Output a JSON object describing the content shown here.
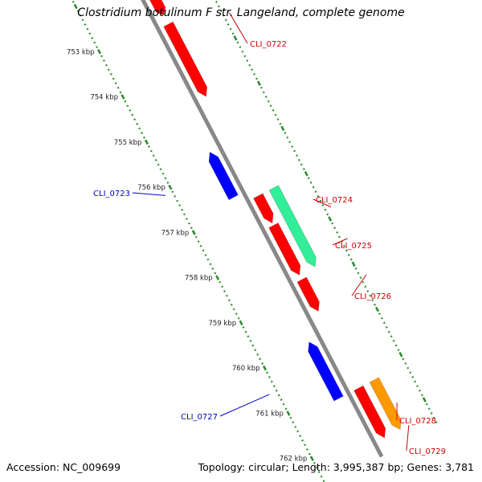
{
  "title": "Clostridium botulinum F str. Langeland, complete genome",
  "footer": {
    "accession": "Accession: NC_009699",
    "topology": "Topology: circular; Length: 3,995,387 bp; Genes: 3,781"
  },
  "ruler_labels": [
    {
      "text": "753 kbp",
      "kbp": 753
    },
    {
      "text": "754 kbp",
      "kbp": 754
    },
    {
      "text": "755 kbp",
      "kbp": 755
    },
    {
      "text": "756 kbp",
      "kbp": 756
    },
    {
      "text": "757 kbp",
      "kbp": 757
    },
    {
      "text": "758 kbp",
      "kbp": 758
    },
    {
      "text": "759 kbp",
      "kbp": 759
    },
    {
      "text": "760 kbp",
      "kbp": 760
    },
    {
      "text": "761 kbp",
      "kbp": 761
    },
    {
      "text": "762 kbp",
      "kbp": 762
    }
  ],
  "genes": [
    {
      "label": "",
      "strand": "+",
      "track": 1,
      "start_kbp": 752.55,
      "end_kbp": 752.95,
      "color": "#ff0000"
    },
    {
      "label": "CLI_0722",
      "strand": "+",
      "track": 1,
      "start_kbp": 753.15,
      "end_kbp": 754.75,
      "color": "#ff0000"
    },
    {
      "label": "CLI_0723",
      "strand": "-",
      "track": 1,
      "start_kbp": 755.75,
      "end_kbp": 756.75,
      "color": "#0000ff"
    },
    {
      "label": "CLI_0724",
      "strand": "+",
      "track": 1,
      "start_kbp": 756.95,
      "end_kbp": 757.55,
      "color": "#ff0000"
    },
    {
      "label": "CLI_0725",
      "strand": "+",
      "track": 1,
      "start_kbp": 757.6,
      "end_kbp": 758.7,
      "color": "#ff0000"
    },
    {
      "label": "CLI_0726",
      "strand": "+",
      "track": 2,
      "start_kbp": 756.95,
      "end_kbp": 758.7,
      "color": "#33ee99"
    },
    {
      "label": "",
      "strand": "+",
      "track": 1,
      "start_kbp": 758.8,
      "end_kbp": 759.5,
      "color": "#ff0000"
    },
    {
      "label": "CLI_0727",
      "strand": "-",
      "track": 1,
      "start_kbp": 759.95,
      "end_kbp": 761.2,
      "color": "#0000ff"
    },
    {
      "label": "CLI_0728",
      "strand": "+",
      "track": 1,
      "start_kbp": 761.2,
      "end_kbp": 762.3,
      "color": "#ff0000"
    },
    {
      "label": "CLI_0729",
      "strand": "+",
      "track": 2,
      "start_kbp": 761.2,
      "end_kbp": 762.3,
      "color": "#ff9900"
    }
  ],
  "colors": {
    "backbone": "#888888",
    "ruler_dots": "#2e8b2e",
    "forward_label": "#cc0000",
    "reverse_label": "#0000cc"
  }
}
